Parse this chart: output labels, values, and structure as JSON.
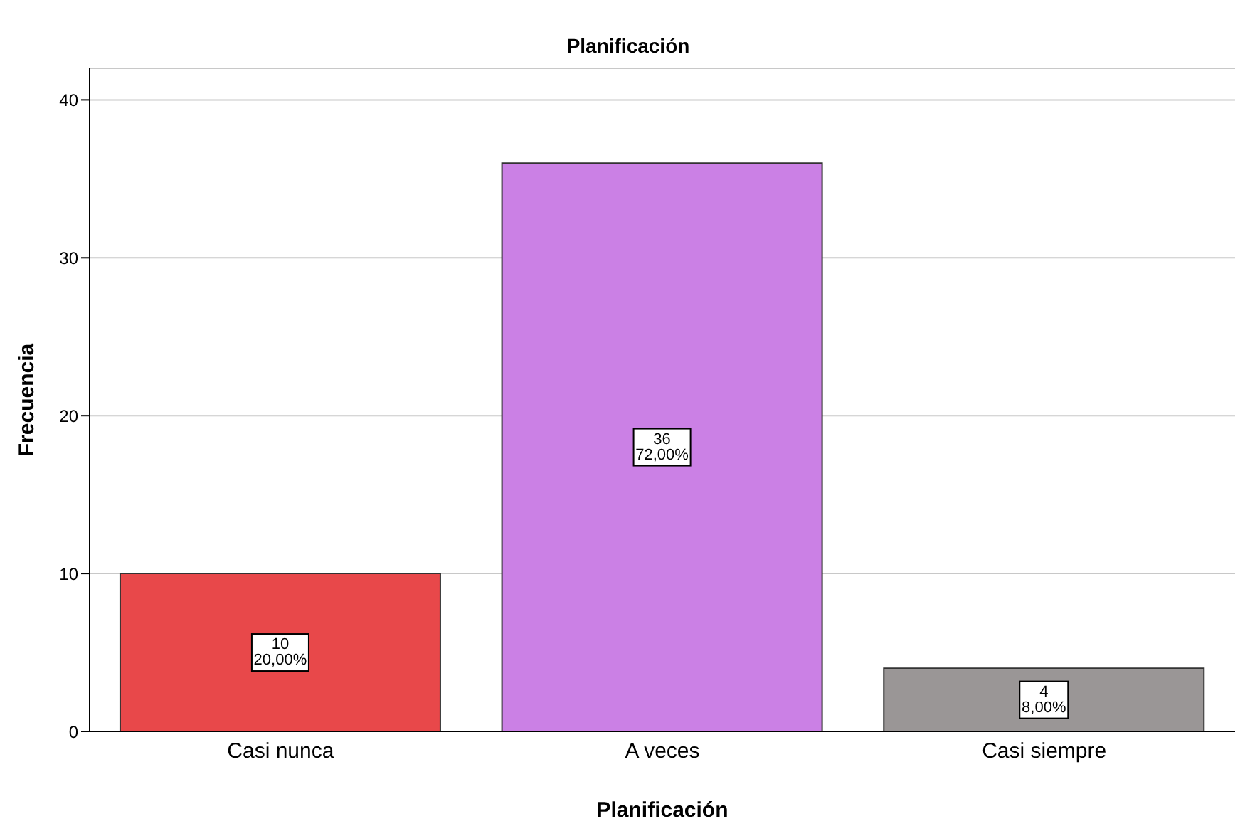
{
  "chart_data": {
    "type": "bar",
    "title": "Planificación",
    "xlabel": "Planificación",
    "ylabel": "Frecuencia",
    "categories": [
      "Casi nunca",
      "A veces",
      "Casi siempre"
    ],
    "values": [
      10,
      36,
      4
    ],
    "colors": [
      "#e8484a",
      "#cb80e5",
      "#9a9696"
    ],
    "value_labels": [
      "10\n20,00%",
      "36\n72,00%",
      "4\n8,00%"
    ],
    "ylim": [
      0,
      42
    ],
    "yticks": [
      0,
      10,
      20,
      30,
      40
    ],
    "grid": "y"
  }
}
